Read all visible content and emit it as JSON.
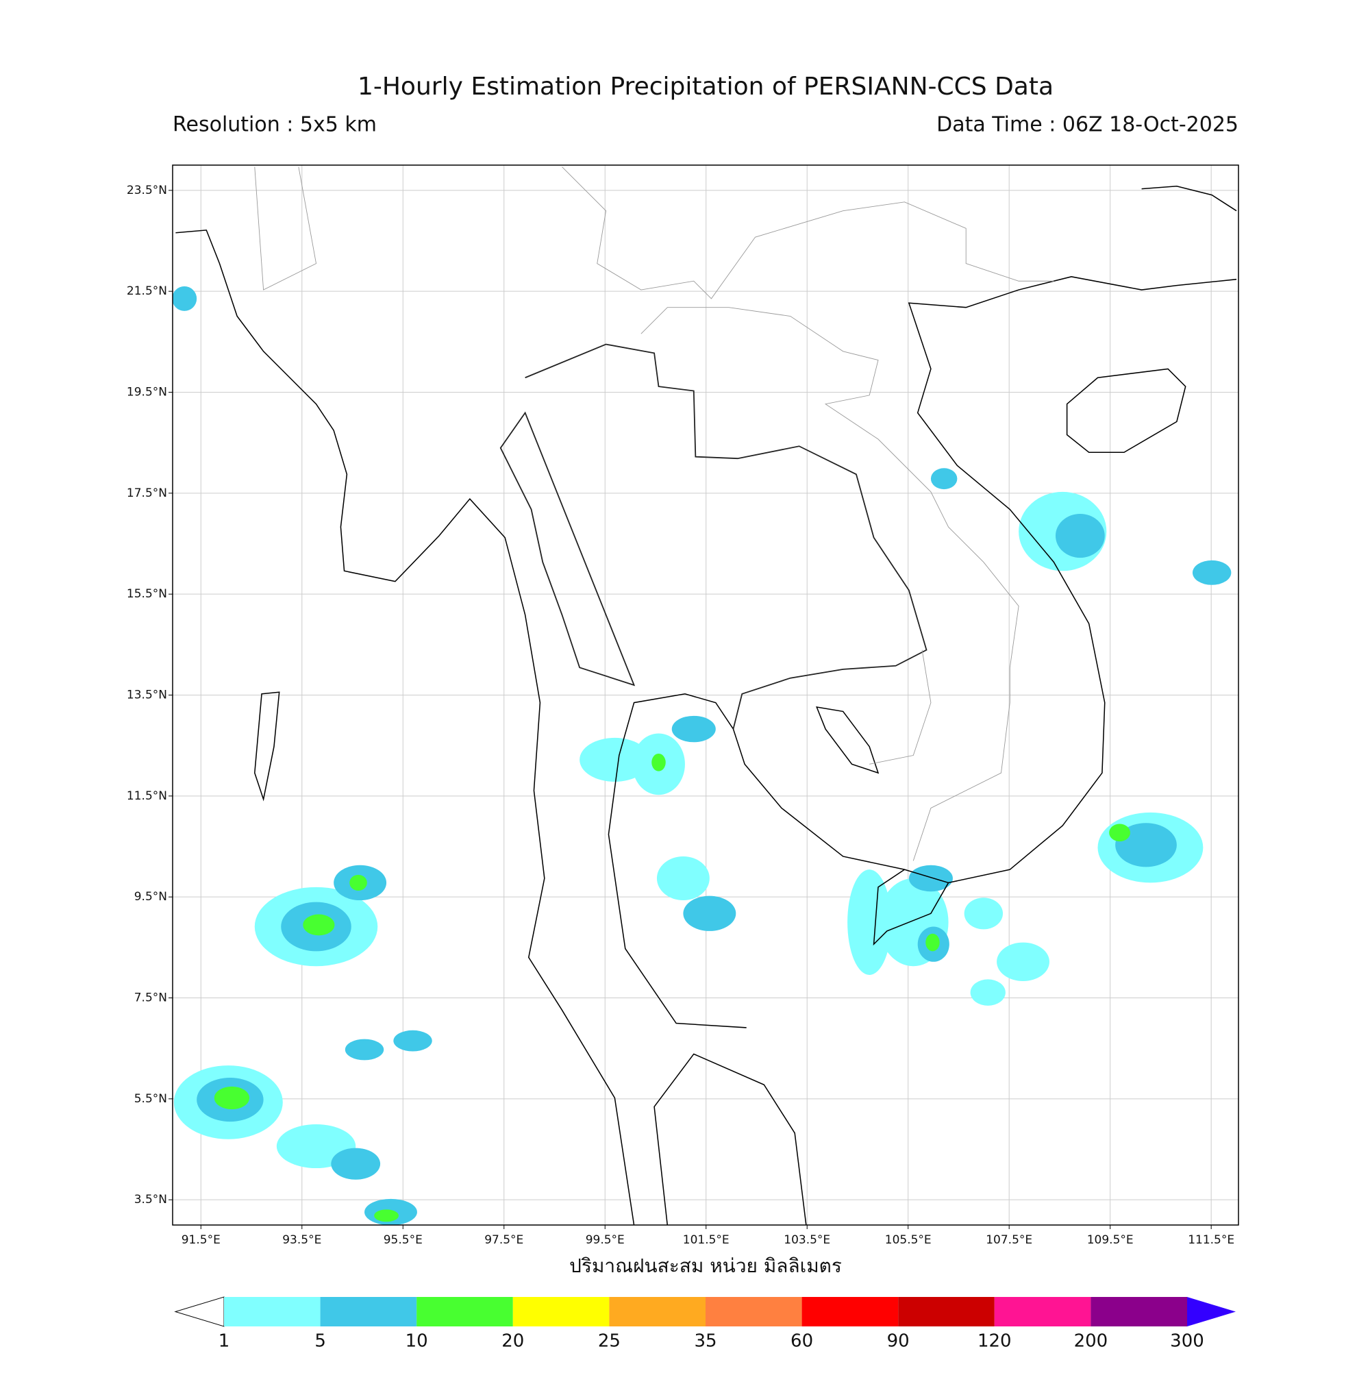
{
  "header": {
    "title": "1-Hourly Estimation Precipitation of PERSIANN-CCS Data",
    "resolution": "Resolution : 5x5 km",
    "data_time": "Data Time : 06Z 18-Oct-2025"
  },
  "map": {
    "lon_range": [
      90.94,
      112.04
    ],
    "lat_range": [
      3.0,
      24.0
    ],
    "lon_ticks": [
      {
        "value": 91.5,
        "label": "91.5°E"
      },
      {
        "value": 93.5,
        "label": "93.5°E"
      },
      {
        "value": 95.5,
        "label": "95.5°E"
      },
      {
        "value": 97.5,
        "label": "97.5°E"
      },
      {
        "value": 99.5,
        "label": "99.5°E"
      },
      {
        "value": 101.5,
        "label": "101.5°E"
      },
      {
        "value": 103.5,
        "label": "103.5°E"
      },
      {
        "value": 105.5,
        "label": "105.5°E"
      },
      {
        "value": 107.5,
        "label": "107.5°E"
      },
      {
        "value": 109.5,
        "label": "109.5°E"
      },
      {
        "value": 111.5,
        "label": "111.5°E"
      }
    ],
    "lat_ticks": [
      {
        "value": 23.5,
        "label": "23.5°N"
      },
      {
        "value": 21.5,
        "label": "21.5°N"
      },
      {
        "value": 19.5,
        "label": "19.5°N"
      },
      {
        "value": 17.5,
        "label": "17.5°N"
      },
      {
        "value": 15.5,
        "label": "15.5°N"
      },
      {
        "value": 13.5,
        "label": "13.5°N"
      },
      {
        "value": 11.5,
        "label": "11.5°N"
      },
      {
        "value": 9.5,
        "label": "9.5°N"
      },
      {
        "value": 7.5,
        "label": "7.5°N"
      },
      {
        "value": 5.5,
        "label": "5.5°N"
      },
      {
        "value": 3.5,
        "label": "3.5°N"
      }
    ],
    "axis_label": "ปริมาณฝนสะสม หน่วย มิลลิเมตร"
  },
  "colorbar": {
    "levels": [
      1,
      5,
      10,
      20,
      25,
      35,
      60,
      90,
      120,
      200,
      300
    ],
    "colors": [
      "#80ffff",
      "#40c8e8",
      "#48ff30",
      "#ffff00",
      "#ffaa20",
      "#ff8040",
      "#ff0000",
      "#cc0000",
      "#ff1493",
      "#8b008b",
      "#3300ff"
    ]
  }
}
